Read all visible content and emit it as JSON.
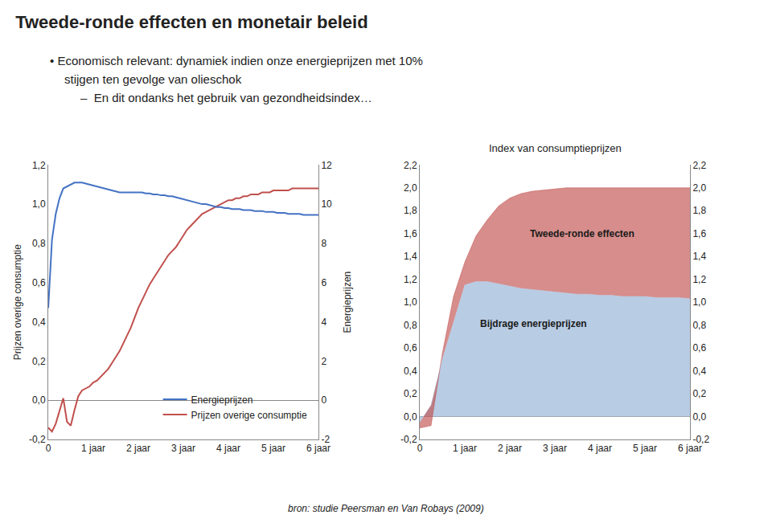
{
  "title": "Tweede-ronde effecten en monetair beleid",
  "subtitle": [
    "• Economisch relevant: dynamiek indien onze energieprijzen met 10%",
    "stijgen ten gevolge van olieschok",
    "–  En dit ondanks het gebruik van gezondheidsindex…"
  ],
  "annotations": [
    "bron: studie Peersman en Van Robays (2009)"
  ],
  "chart_data": [
    {
      "type": "line",
      "x": [
        0,
        1,
        2,
        3,
        4,
        5,
        6,
        7,
        8,
        9,
        10,
        11,
        12,
        13,
        14,
        15,
        16,
        17,
        18,
        19,
        20,
        21,
        22,
        23,
        24,
        25,
        26,
        27,
        28,
        29,
        30,
        31,
        32,
        33,
        34,
        35,
        36,
        37,
        38,
        39,
        40,
        41,
        42,
        43,
        44,
        45,
        46,
        47,
        48,
        49,
        50,
        51,
        52,
        53,
        54,
        55,
        56,
        57,
        58,
        59,
        60,
        61,
        62,
        63,
        64,
        65,
        66,
        67,
        68,
        69,
        70,
        71,
        72
      ],
      "xlim": [
        0,
        72
      ],
      "xticks": [
        0,
        {
          "value": 12,
          "label": "1 jaar"
        },
        {
          "value": 24,
          "label": "2 jaar"
        },
        {
          "value": 36,
          "label": "3 jaar"
        },
        {
          "value": 48,
          "label": "4 jaar"
        },
        {
          "value": 60,
          "label": "5 jaar"
        },
        {
          "value": 72,
          "label": "6 jaar"
        }
      ],
      "ylabel": "Prijzen overige consumptie",
      "ylim": [
        -0.2,
        1.2
      ],
      "yticks": [
        {
          "value": -0.2,
          "label": "-0,2"
        },
        {
          "value": 0,
          "label": "0,0"
        },
        {
          "value": 0.2,
          "label": "0,2"
        },
        {
          "value": 0.4,
          "label": "0,4"
        },
        {
          "value": 0.6,
          "label": "0,6"
        },
        {
          "value": 0.8,
          "label": "0,8"
        },
        {
          "value": 1.0,
          "label": "1,0"
        },
        {
          "value": 1.2,
          "label": "1,2"
        }
      ],
      "y2label": "Energieprijzen",
      "y2lim": [
        -2,
        12
      ],
      "y2ticks": [
        -2,
        0,
        2,
        4,
        6,
        8,
        10,
        12
      ],
      "grid": false,
      "legend": "lower right",
      "series": [
        {
          "name": "Prijzen overige consumptie",
          "color": "#C0504D",
          "values": [
            -0.14,
            -0.16,
            -0.12,
            -0.05,
            0.01,
            -0.11,
            -0.13,
            -0.05,
            0.02,
            0.05,
            0.06,
            0.07,
            0.09,
            0.1,
            0.12,
            0.14,
            0.16,
            0.19,
            0.22,
            0.25,
            0.29,
            0.33,
            0.37,
            0.42,
            0.47,
            0.51,
            0.55,
            0.59,
            0.62,
            0.65,
            0.68,
            0.71,
            0.74,
            0.76,
            0.78,
            0.81,
            0.84,
            0.87,
            0.89,
            0.91,
            0.93,
            0.95,
            0.96,
            0.97,
            0.98,
            0.99,
            1.0,
            1.01,
            1.02,
            1.02,
            1.03,
            1.03,
            1.04,
            1.04,
            1.05,
            1.05,
            1.05,
            1.06,
            1.06,
            1.06,
            1.07,
            1.07,
            1.07,
            1.07,
            1.07,
            1.08,
            1.08,
            1.08,
            1.08,
            1.08,
            1.08,
            1.08,
            1.08
          ]
        },
        {
          "name": "Energieprijzen",
          "color": "#4472C4",
          "axis": "y2",
          "values": [
            4.7,
            8.2,
            9.5,
            10.3,
            10.8,
            10.9,
            11.0,
            11.1,
            11.1,
            11.1,
            11.05,
            11.0,
            10.95,
            10.9,
            10.85,
            10.8,
            10.75,
            10.7,
            10.65,
            10.6,
            10.6,
            10.6,
            10.6,
            10.6,
            10.6,
            10.6,
            10.55,
            10.55,
            10.5,
            10.5,
            10.45,
            10.45,
            10.4,
            10.4,
            10.35,
            10.3,
            10.25,
            10.2,
            10.15,
            10.1,
            10.05,
            10.0,
            10.0,
            9.95,
            9.9,
            9.85,
            9.85,
            9.8,
            9.8,
            9.75,
            9.75,
            9.75,
            9.7,
            9.7,
            9.7,
            9.65,
            9.65,
            9.65,
            9.6,
            9.6,
            9.6,
            9.55,
            9.55,
            9.55,
            9.5,
            9.5,
            9.5,
            9.5,
            9.45,
            9.45,
            9.45,
            9.45,
            9.45
          ]
        }
      ]
    },
    {
      "type": "area",
      "title": "Index van consumptieprijzen",
      "stacked": true,
      "x": [
        0,
        3,
        6,
        9,
        12,
        15,
        18,
        21,
        24,
        27,
        30,
        33,
        36,
        39,
        42,
        45,
        48,
        51,
        54,
        57,
        60,
        63,
        66,
        69,
        72
      ],
      "xlim": [
        0,
        72
      ],
      "xticks": [
        0,
        {
          "value": 12,
          "label": "1 jaar"
        },
        {
          "value": 24,
          "label": "2 jaar"
        },
        {
          "value": 36,
          "label": "3 jaar"
        },
        {
          "value": 48,
          "label": "4 jaar"
        },
        {
          "value": 60,
          "label": "5 jaar"
        },
        {
          "value": 72,
          "label": "6 jaar"
        }
      ],
      "ylim": [
        -0.2,
        2.2
      ],
      "yticks": [
        {
          "value": -0.2,
          "label": "-0,2"
        },
        {
          "value": 0.0,
          "label": "0,0"
        },
        {
          "value": 0.2,
          "label": "0,2"
        },
        {
          "value": 0.4,
          "label": "0,4"
        },
        {
          "value": 0.6,
          "label": "0,6"
        },
        {
          "value": 0.8,
          "label": "0,8"
        },
        {
          "value": 1.0,
          "label": "1,0"
        },
        {
          "value": 1.2,
          "label": "1,2"
        },
        {
          "value": 1.4,
          "label": "1,4"
        },
        {
          "value": 1.6,
          "label": "1,6"
        },
        {
          "value": 1.8,
          "label": "1,8"
        },
        {
          "value": 2.0,
          "label": "2,0"
        },
        {
          "value": 2.2,
          "label": "2,2"
        }
      ],
      "y2lim": [
        -0.2,
        2.2
      ],
      "y2ticks": [
        {
          "value": -0.2,
          "label": "-0,2"
        },
        {
          "value": 0.0,
          "label": "0,0"
        },
        {
          "value": 0.2,
          "label": "0,2"
        },
        {
          "value": 0.4,
          "label": "0,4"
        },
        {
          "value": 0.6,
          "label": "0,6"
        },
        {
          "value": 0.8,
          "label": "0,8"
        },
        {
          "value": 1.0,
          "label": "1,0"
        },
        {
          "value": 1.2,
          "label": "1,2"
        },
        {
          "value": 1.4,
          "label": "1,4"
        },
        {
          "value": 1.6,
          "label": "1,6"
        },
        {
          "value": 1.8,
          "label": "1,8"
        },
        {
          "value": 2.0,
          "label": "2,0"
        },
        {
          "value": 2.2,
          "label": "2,2"
        }
      ],
      "grid": false,
      "series": [
        {
          "name": "Bijdrage energieprijzen",
          "color": "#B8CCE4",
          "values": [
            -0.05,
            0.1,
            0.5,
            0.82,
            1.15,
            1.18,
            1.18,
            1.16,
            1.14,
            1.12,
            1.11,
            1.1,
            1.09,
            1.08,
            1.07,
            1.07,
            1.06,
            1.06,
            1.05,
            1.05,
            1.05,
            1.04,
            1.04,
            1.04,
            1.03
          ]
        },
        {
          "name": "Tweede-ronde effecten",
          "color": "#C0504D",
          "values": [
            -0.05,
            -0.18,
            0.05,
            0.23,
            0.2,
            0.4,
            0.54,
            0.68,
            0.77,
            0.83,
            0.86,
            0.88,
            0.9,
            0.92,
            0.93,
            0.93,
            0.94,
            0.94,
            0.95,
            0.95,
            0.95,
            0.96,
            0.96,
            0.96,
            0.97
          ]
        }
      ]
    }
  ]
}
